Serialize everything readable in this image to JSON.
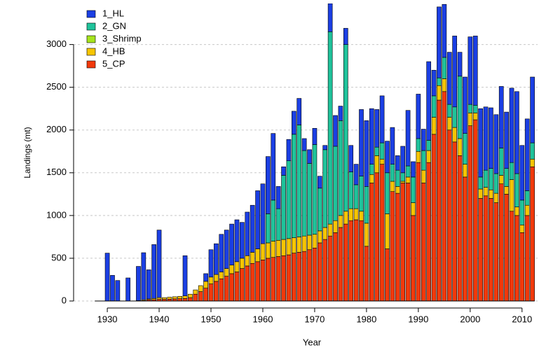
{
  "chart_data": {
    "type": "stacked_bar",
    "x_label": "Year",
    "y_label": "Landings (mt)",
    "x": [
      1928,
      1929,
      1930,
      1931,
      1932,
      1933,
      1934,
      1935,
      1936,
      1937,
      1938,
      1939,
      1940,
      1941,
      1942,
      1943,
      1944,
      1945,
      1946,
      1947,
      1948,
      1949,
      1950,
      1951,
      1952,
      1953,
      1954,
      1955,
      1956,
      1957,
      1958,
      1959,
      1960,
      1961,
      1962,
      1963,
      1964,
      1965,
      1966,
      1967,
      1968,
      1969,
      1970,
      1971,
      1972,
      1973,
      1974,
      1975,
      1976,
      1977,
      1978,
      1979,
      1980,
      1981,
      1982,
      1983,
      1984,
      1985,
      1986,
      1987,
      1988,
      1989,
      1990,
      1991,
      1992,
      1993,
      1994,
      1995,
      1996,
      1997,
      1998,
      1999,
      2000,
      2001,
      2002,
      2003,
      2004,
      2005,
      2006,
      2007,
      2008,
      2009,
      2010,
      2011,
      2012
    ],
    "series": [
      {
        "name": "1_HL",
        "color": "#1b3fe4",
        "values": [
          0,
          0,
          560,
          300,
          240,
          0,
          270,
          0,
          400,
          550,
          340,
          630,
          790,
          0,
          0,
          0,
          0,
          470,
          0,
          0,
          0,
          90,
          320,
          360,
          440,
          450,
          480,
          490,
          420,
          510,
          550,
          680,
          700,
          670,
          780,
          260,
          100,
          250,
          270,
          310,
          140,
          160,
          190,
          140,
          50,
          330,
          360,
          170,
          190,
          310,
          240,
          780,
          770,
          650,
          440,
          550,
          370,
          430,
          170,
          310,
          650,
          180,
          520,
          250,
          920,
          300,
          830,
          620,
          610,
          830,
          280,
          660,
          790,
          810,
          800,
          740,
          710,
          690,
          720,
          660,
          870,
          960,
          640,
          840,
          770
        ]
      },
      {
        "name": "2_GN",
        "color": "#1fc39b",
        "values": [
          0,
          0,
          0,
          0,
          0,
          0,
          0,
          0,
          0,
          0,
          0,
          0,
          0,
          0,
          0,
          0,
          0,
          0,
          0,
          0,
          0,
          0,
          0,
          0,
          0,
          0,
          0,
          0,
          0,
          0,
          0,
          0,
          0,
          340,
          480,
          370,
          750,
          910,
          1210,
          1310,
          1000,
          840,
          1050,
          500,
          910,
          2250,
          870,
          1110,
          1950,
          430,
          280,
          410,
          430,
          120,
          100,
          190,
          480,
          200,
          190,
          100,
          130,
          300,
          150,
          230,
          120,
          250,
          90,
          250,
          150,
          240,
          730,
          360,
          100,
          90,
          140,
          200,
          250,
          230,
          320,
          210,
          200,
          390,
          290,
          170,
          190
        ]
      },
      {
        "name": "3_Shrimp",
        "color": "#a6e41c",
        "values": [
          0,
          0,
          0,
          0,
          0,
          0,
          0,
          0,
          0,
          0,
          0,
          0,
          0,
          0,
          0,
          0,
          0,
          0,
          0,
          0,
          0,
          0,
          0,
          0,
          0,
          0,
          0,
          0,
          0,
          0,
          0,
          0,
          0,
          0,
          0,
          0,
          0,
          0,
          0,
          0,
          0,
          0,
          0,
          0,
          0,
          0,
          0,
          0,
          0,
          0,
          0,
          0,
          0,
          0,
          0,
          0,
          0,
          0,
          0,
          0,
          0,
          0,
          0,
          0,
          0,
          0,
          0,
          0,
          0,
          0,
          0,
          0,
          0,
          0,
          0,
          0,
          0,
          0,
          0,
          0,
          0,
          0,
          0,
          0,
          0
        ]
      },
      {
        "name": "4_HB",
        "color": "#f6c500",
        "values": [
          0,
          0,
          0,
          0,
          0,
          0,
          0,
          0,
          0,
          10,
          10,
          15,
          20,
          20,
          23,
          25,
          28,
          30,
          40,
          50,
          70,
          80,
          80,
          80,
          80,
          90,
          100,
          120,
          120,
          120,
          130,
          150,
          190,
          180,
          190,
          190,
          190,
          190,
          180,
          180,
          180,
          170,
          160,
          140,
          140,
          140,
          140,
          140,
          150,
          140,
          130,
          110,
          270,
          100,
          200,
          60,
          410,
          120,
          80,
          20,
          70,
          150,
          130,
          150,
          140,
          200,
          170,
          150,
          150,
          170,
          200,
          150,
          150,
          80,
          110,
          100,
          100,
          110,
          100,
          90,
          370,
          100,
          90,
          120,
          90
        ]
      },
      {
        "name": "5_CP",
        "color": "#f2390b",
        "values": [
          0,
          0,
          0,
          0,
          0,
          0,
          0,
          0,
          5,
          5,
          15,
          15,
          20,
          20,
          22,
          25,
          27,
          30,
          40,
          80,
          110,
          150,
          200,
          230,
          260,
          290,
          320,
          340,
          380,
          410,
          440,
          460,
          480,
          500,
          510,
          520,
          530,
          540,
          560,
          570,
          580,
          600,
          620,
          680,
          720,
          760,
          800,
          860,
          900,
          940,
          950,
          940,
          640,
          1380,
          1500,
          1600,
          610,
          1280,
          1260,
          1380,
          1380,
          1000,
          1620,
          1380,
          1620,
          1950,
          2350,
          2450,
          2000,
          1860,
          1700,
          1450,
          2050,
          2120,
          1200,
          1230,
          1200,
          1150,
          1370,
          1250,
          1050,
          1000,
          800,
          1000,
          1570
        ]
      }
    ],
    "xlim": [
      1923.5,
      2013
    ],
    "xticks": [
      1930,
      1940,
      1950,
      1960,
      1970,
      1980,
      1990,
      2000,
      2010
    ],
    "ylim": [
      0,
      3480
    ],
    "yticks": [
      0,
      500,
      1000,
      1500,
      2000,
      2500,
      3000
    ],
    "grid": true,
    "legend": "top-left"
  }
}
